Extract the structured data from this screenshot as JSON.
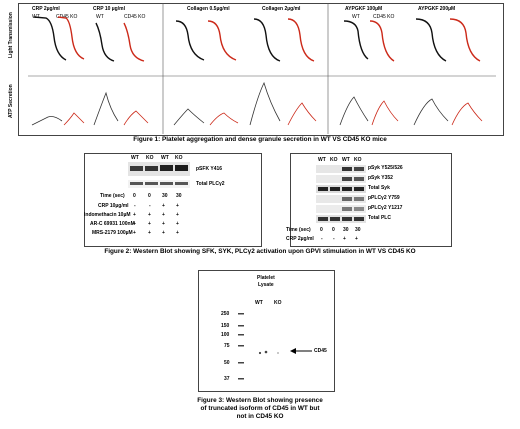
{
  "fig1": {
    "panels": [
      {
        "title": "CRP 2µg/ml",
        "wt": "WT",
        "ko": "CD45 KO"
      },
      {
        "title": "CRP 10 µg/ml",
        "wt": "WT",
        "ko": "CD45 KO"
      },
      {
        "title": "Collagen 0.5µg/ml",
        "wt": "",
        "ko": ""
      },
      {
        "title": "Collagen 2µg/ml",
        "wt": "",
        "ko": ""
      },
      {
        "title": "AYPGKF 100µM",
        "wt": "WT",
        "ko": "CD45 KO"
      },
      {
        "title": "AYPGKF 200µM",
        "wt": "",
        "ko": ""
      }
    ],
    "ylabel_top": "Light Transmission",
    "ylabel_bottom": "ATP Secretion",
    "caption": "Figure 1: Platelet aggregation and dense granule secretion in WT VS CD45 KO mice",
    "colors": {
      "wt": "#111111",
      "ko": "#cc2a1a"
    }
  },
  "fig2a": {
    "lanes": [
      "WT",
      "KO",
      "WT",
      "KO"
    ],
    "rows": [
      {
        "label": "pSFK Y416"
      },
      {
        "label": "Total PLCγ2"
      }
    ],
    "conditions": [
      {
        "label": "Time (sec)",
        "values": [
          "0",
          "0",
          "30",
          "30"
        ]
      },
      {
        "label": "CRP 10µg/ml",
        "values": [
          "-",
          "-",
          "+",
          "+"
        ]
      },
      {
        "label": "Indomethacin 10µM",
        "values": [
          "+",
          "+",
          "+",
          "+"
        ]
      },
      {
        "label": "AR-C 69931 100nM",
        "values": [
          "+",
          "+",
          "+",
          "+"
        ]
      },
      {
        "label": "MRS-2179 100µM",
        "values": [
          "+",
          "+",
          "+",
          "+"
        ]
      }
    ]
  },
  "fig2b": {
    "lanes": [
      "WT",
      "KO",
      "WT",
      "KO"
    ],
    "rows": [
      {
        "label": "pSyk Y525/526"
      },
      {
        "label": "pSyk Y352"
      },
      {
        "label": "Total Syk"
      },
      {
        "label": "pPLCγ2 Y759"
      },
      {
        "label": "pPLCγ2 Y1217"
      },
      {
        "label": "Total PLC"
      }
    ],
    "conditions": [
      {
        "label": "Time (sec)",
        "values": [
          "0",
          "0",
          "30",
          "30"
        ]
      },
      {
        "label": "CRP 2µg/ml",
        "values": [
          "-",
          "-",
          "+",
          "+"
        ]
      }
    ]
  },
  "fig2_caption": "Figure 2: Western Blot showing SFK, SYK, PLCγ2 activation upon GPVI stimulation in WT VS CD45 KO",
  "fig3": {
    "header": "Platelet\nLysate",
    "header_l1": "Platelet",
    "header_l2": "Lysate",
    "lanes": [
      "WT",
      "KO"
    ],
    "markers": [
      "250",
      "150",
      "100",
      "75",
      "50",
      "37"
    ],
    "arrow_label": "CD45",
    "caption_l1": "Figure 3: Western Blot showing presence",
    "caption_l2": "of truncated isoform of CD45 in WT but",
    "caption_l3": "not in CD45 KO"
  }
}
